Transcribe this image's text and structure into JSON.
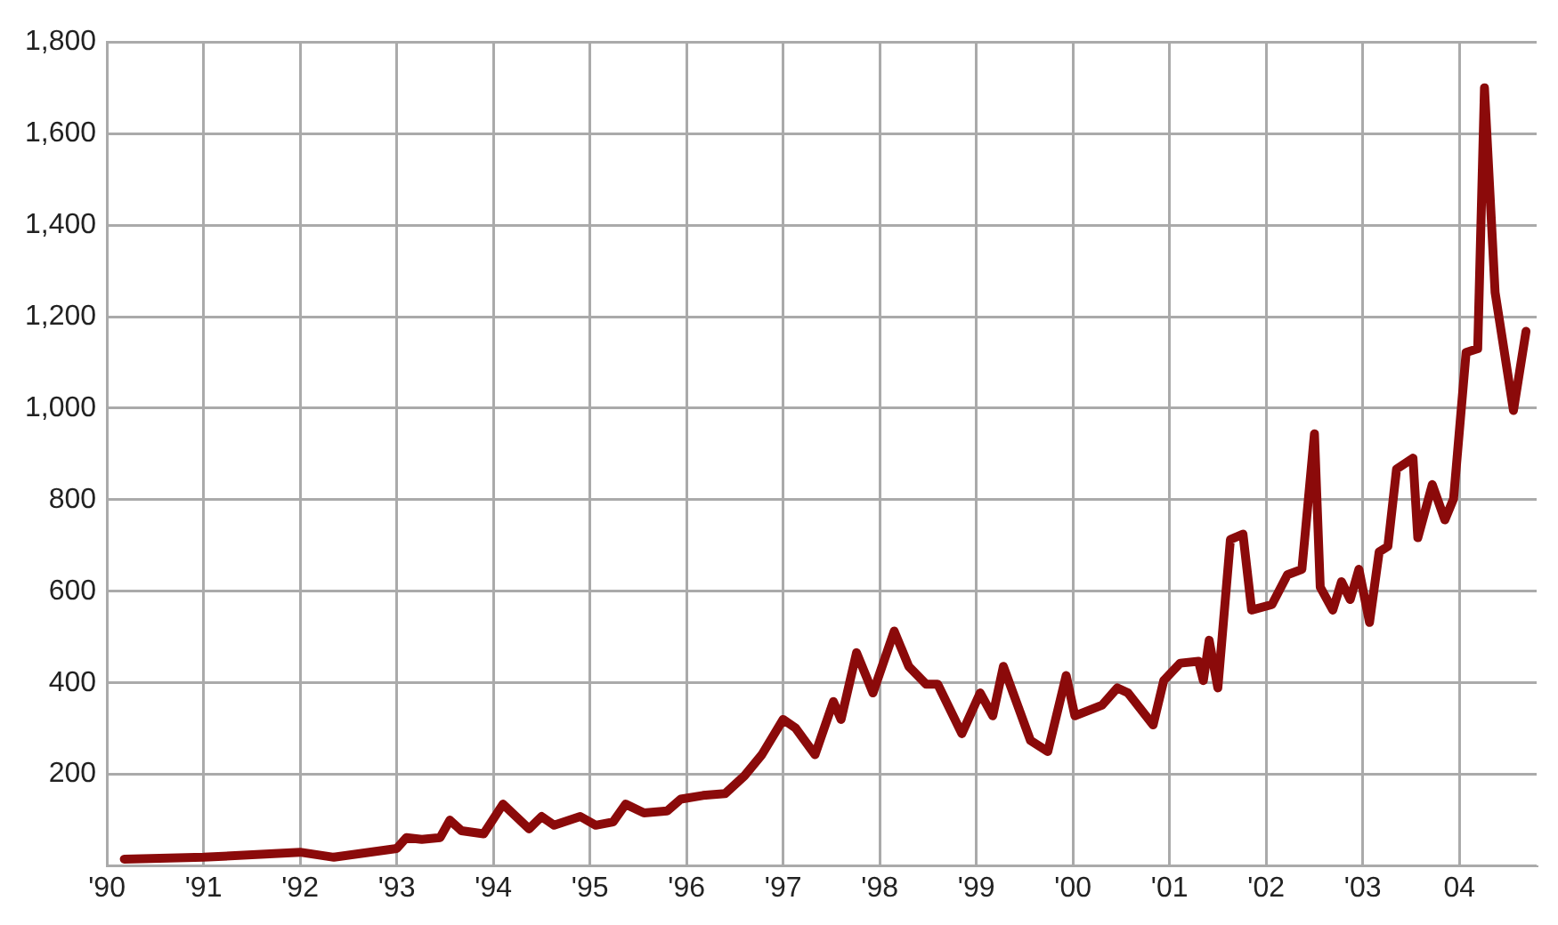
{
  "chart_data": {
    "type": "line",
    "x": [
      1990.18,
      1991,
      1992,
      1992.35,
      1993,
      1993.1,
      1993.26,
      1993.45,
      1993.55,
      1993.67,
      1993.9,
      1994.1,
      1994.37,
      1994.5,
      1994.63,
      1994.9,
      1995.06,
      1995.24,
      1995.37,
      1995.56,
      1995.8,
      1995.94,
      1996.17,
      1996.4,
      1996.6,
      1996.78,
      1997,
      1997.13,
      1997.33,
      1997.52,
      1997.6,
      1997.76,
      1997.93,
      1998.15,
      1998.3,
      1998.48,
      1998.6,
      1998.85,
      1999.04,
      1999.17,
      1999.28,
      1999.56,
      1999.74,
      1999.93,
      2000.02,
      2000.3,
      2000.46,
      2000.57,
      2000.83,
      2000.94,
      2001.11,
      2001.3,
      2001.35,
      2001.41,
      2001.5,
      2001.63,
      2001.76,
      2001.85,
      2002.06,
      2002.22,
      2002.37,
      2002.5,
      2002.56,
      2002.69,
      2002.78,
      2002.87,
      2002.96,
      2003.07,
      2003.17,
      2003.26,
      2003.35,
      2003.52,
      2003.57,
      2003.72,
      2003.85,
      2003.94,
      2004.07,
      2004.19,
      2004.26,
      2004.37,
      2004.56,
      2004.69
    ],
    "series": [
      {
        "color": "#8b0a0a",
        "values": [
          15,
          19,
          30,
          19,
          38,
          62,
          58,
          62,
          100,
          77,
          70,
          135,
          81,
          108,
          89,
          108,
          89,
          96,
          135,
          116,
          120,
          146,
          154,
          158,
          197,
          243,
          320,
          301,
          243,
          359,
          320,
          466,
          378,
          513,
          436,
          397,
          397,
          289,
          378,
          328,
          436,
          274,
          250,
          416,
          328,
          351,
          389,
          378,
          308,
          405,
          443,
          447,
          405,
          493,
          389,
          713,
          725,
          559,
          571,
          636,
          648,
          944,
          609,
          559,
          621,
          582,
          648,
          532,
          686,
          698,
          867,
          891,
          717,
          833,
          756,
          802,
          1122,
          1130,
          1700,
          1253,
          995,
          1168
        ]
      }
    ],
    "xlim": [
      1990,
      2004.8
    ],
    "xticks": [
      {
        "value": 1990,
        "label": "'90"
      },
      {
        "value": 1991,
        "label": "'91"
      },
      {
        "value": 1992,
        "label": "'92"
      },
      {
        "value": 1993,
        "label": "'93"
      },
      {
        "value": 1994,
        "label": "'94"
      },
      {
        "value": 1995,
        "label": "'95"
      },
      {
        "value": 1996,
        "label": "'96"
      },
      {
        "value": 1997,
        "label": "'97"
      },
      {
        "value": 1998,
        "label": "'98"
      },
      {
        "value": 1999,
        "label": "'99"
      },
      {
        "value": 2000,
        "label": "'00"
      },
      {
        "value": 2001,
        "label": "'01"
      },
      {
        "value": 2002,
        "label": "'02"
      },
      {
        "value": 2003,
        "label": "'03"
      },
      {
        "value": 2004,
        "label": "04"
      }
    ],
    "ylim": [
      0,
      1800
    ],
    "yticks": [
      {
        "value": 0,
        "label": null
      },
      200,
      400,
      600,
      800,
      {
        "value": 1000,
        "label": "1,000"
      },
      {
        "value": 1200,
        "label": "1,200"
      },
      {
        "value": 1400,
        "label": "1,400"
      },
      {
        "value": 1600,
        "label": "1,600"
      },
      {
        "value": 1800,
        "label": "1,800"
      }
    ],
    "grid": true,
    "legend": false,
    "marker": "none",
    "line_style": "solid"
  }
}
